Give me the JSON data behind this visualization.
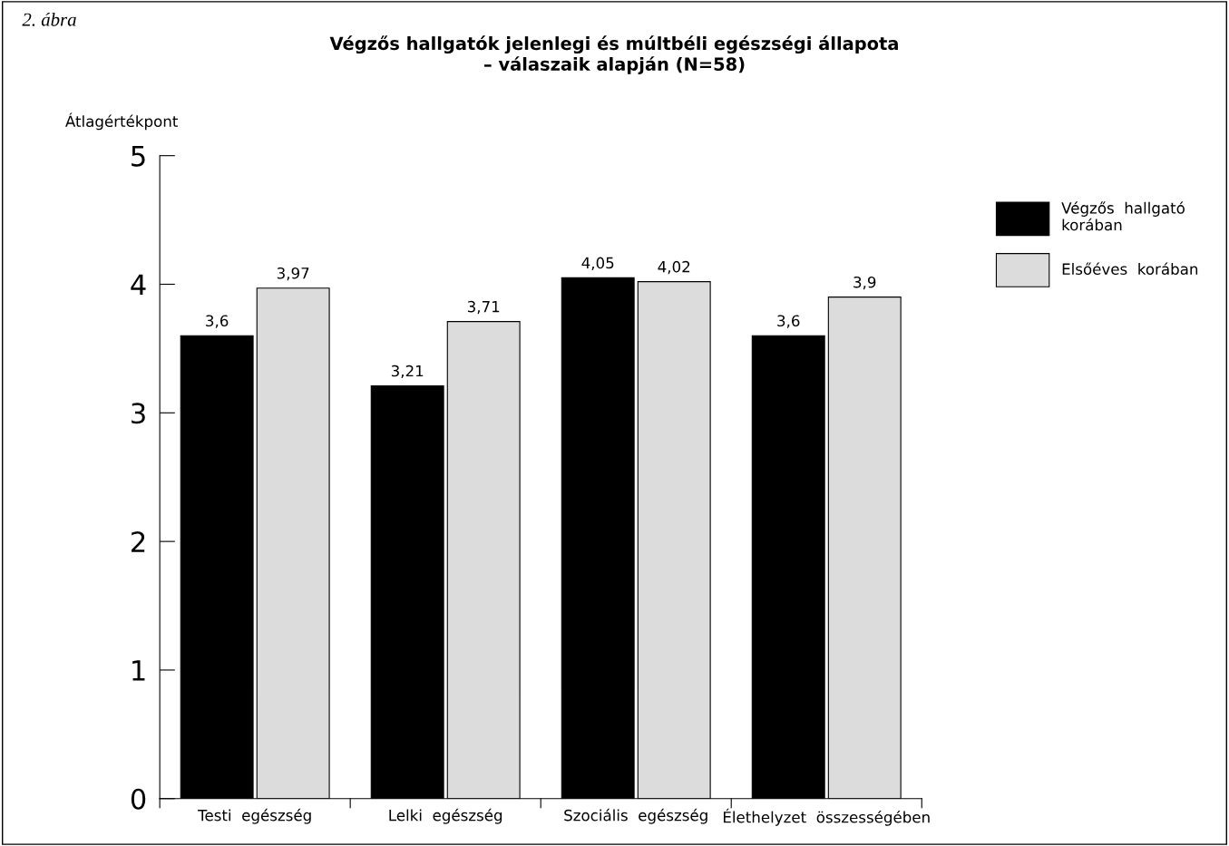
{
  "chart_data": {
    "type": "bar",
    "title": "Végzős hallgatók jelenlegi és múltbéli egészségi állapota\n– válaszaik alapján (N=58)",
    "ylabel": "Átlagértékpont",
    "annotations": [
      "2. ábra"
    ],
    "categories": [
      "Testi  egészség",
      "Lelki  egészség",
      "Szociális  egészség",
      "Élethelyzet  összességében"
    ],
    "series": [
      {
        "name": "Végzős  hallgató\nkorában",
        "color": "#000000",
        "values": [
          3.6,
          3.21,
          4.05,
          3.6
        ],
        "value_labels": [
          "3,6",
          "3,21",
          "4,05",
          "3,6"
        ]
      },
      {
        "name": "Elsőéves  korában",
        "color": "#dcdcdc",
        "values": [
          3.97,
          3.71,
          4.02,
          3.9
        ],
        "value_labels": [
          "3,97",
          "3,71",
          "4,02",
          "3,9"
        ]
      }
    ],
    "ylim": [
      0,
      5
    ],
    "yticks": [
      0,
      1,
      2,
      3,
      4,
      5
    ],
    "grid": false,
    "legend": "right"
  }
}
